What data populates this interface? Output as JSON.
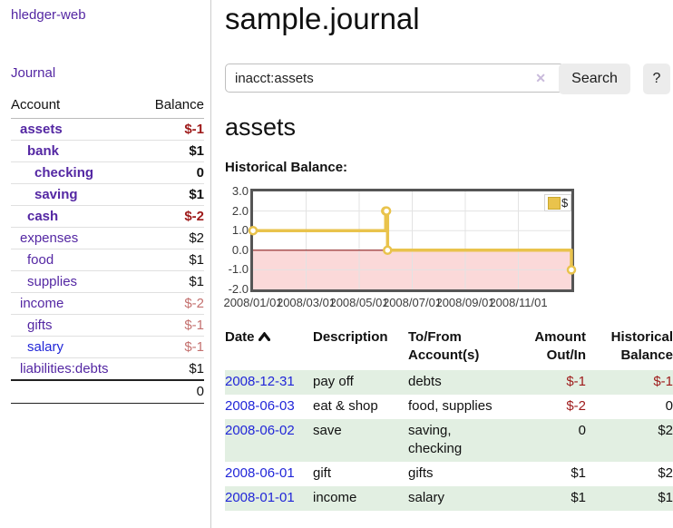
{
  "colors": {
    "link_purple": "#5427a3",
    "link_blue": "#2126d8",
    "negative_strong": "#9e1a1a",
    "negative_muted": "#c4716f",
    "row_shade_green": "#e2efe2",
    "chart_line_yellow": "#e9c34c",
    "chart_negative_pink": "#fbd9d9",
    "chart_zero_line": "#8b1d1d"
  },
  "sidebar": {
    "brand": "hledger-web",
    "journal_link": "Journal",
    "accounts": {
      "headers": [
        "Account",
        "Balance"
      ],
      "rows": [
        {
          "account": "assets",
          "level": 1,
          "bold": true,
          "link": "purple",
          "balance": "$-1",
          "balance_class": "bold neg-strong"
        },
        {
          "account": "bank",
          "level": 2,
          "bold": true,
          "link": "purple",
          "balance": "$1",
          "balance_class": "bold"
        },
        {
          "account": "checking",
          "level": 3,
          "bold": true,
          "link": "purple",
          "balance": "0",
          "balance_class": "bold"
        },
        {
          "account": "saving",
          "level": 3,
          "bold": true,
          "link": "purple",
          "balance": "$1",
          "balance_class": "bold"
        },
        {
          "account": "cash",
          "level": 2,
          "bold": true,
          "link": "purple",
          "balance": "$-2",
          "balance_class": "bold neg-strong"
        },
        {
          "account": "expenses",
          "level": 1,
          "bold": false,
          "link": "purple",
          "balance": "$2",
          "balance_class": ""
        },
        {
          "account": "food",
          "level": 2,
          "bold": false,
          "link": "purple",
          "balance": "$1",
          "balance_class": ""
        },
        {
          "account": "supplies",
          "level": 2,
          "bold": false,
          "link": "purple",
          "balance": "$1",
          "balance_class": ""
        },
        {
          "account": "income",
          "level": 1,
          "bold": false,
          "link": "purple",
          "balance": "$-2",
          "balance_class": "neg-muted"
        },
        {
          "account": "gifts",
          "level": 2,
          "bold": false,
          "link": "purple",
          "balance": "$-1",
          "balance_class": "neg-muted"
        },
        {
          "account": "salary",
          "level": 2,
          "bold": false,
          "link": "blue",
          "balance": "$-1",
          "balance_class": "neg-muted"
        },
        {
          "account": "liabilities:debts",
          "level": 1,
          "bold": false,
          "link": "purple",
          "balance": "$1",
          "balance_class": ""
        }
      ],
      "total": "0"
    }
  },
  "main": {
    "title": "sample.journal",
    "search": {
      "value": "inacct:assets",
      "clear_icon": "✕",
      "button_label": "Search",
      "help_label": "?"
    },
    "account_heading": "assets",
    "chart_title": "Historical Balance:"
  },
  "chart_data": {
    "type": "line",
    "step": true,
    "title": "Historical Balance",
    "ylim": [
      -2,
      3
    ],
    "x_range_months": [
      0,
      12
    ],
    "y_ticks": [
      3.0,
      2.0,
      1.0,
      0.0,
      -1.0,
      -2.0
    ],
    "y_tick_labels": [
      "3.0",
      "2.0",
      "1.0",
      "0.0",
      "-1.0",
      "-2.0"
    ],
    "x_ticks": [
      {
        "m": 0,
        "label": "2008/01/01"
      },
      {
        "m": 2,
        "label": "2008/03/01"
      },
      {
        "m": 4,
        "label": "2008/05/01"
      },
      {
        "m": 6,
        "label": "2008/07/01"
      },
      {
        "m": 8,
        "label": "2008/09/01"
      },
      {
        "m": 10,
        "label": "2008/11/01"
      }
    ],
    "series": [
      {
        "name": "$",
        "color": "#e9c34c",
        "points": [
          {
            "date": "2008/01/01",
            "x_months": 0,
            "value": 1
          },
          {
            "date": "2008/06/01",
            "x_months": 5.0,
            "value": 2
          },
          {
            "date": "2008/06/02",
            "x_months": 5.03,
            "value": 2
          },
          {
            "date": "2008/06/03",
            "x_months": 5.07,
            "value": 0
          },
          {
            "date": "2008/12/31",
            "x_months": 12,
            "value": -1
          }
        ]
      }
    ],
    "negative_region_color": "#fbd9d9",
    "zero_line_color": "#8b1d1d",
    "grid_color": "#e3e3e3",
    "legend": {
      "label": "$",
      "swatch_color": "#e9c34c",
      "position": "top-right"
    }
  },
  "register": {
    "headers": [
      "Date",
      "Description",
      "To/From Account(s)",
      "Amount Out/In",
      "Historical Balance"
    ],
    "sort_icon": "chevron-up",
    "rows": [
      {
        "date": "2008-12-31",
        "description": "pay off",
        "accounts": "debts",
        "amount": "$-1",
        "amount_neg": true,
        "balance": "$-1",
        "balance_neg": true,
        "shaded": true
      },
      {
        "date": "2008-06-03",
        "description": "eat & shop",
        "accounts": "food, supplies",
        "amount": "$-2",
        "amount_neg": true,
        "balance": "0",
        "balance_neg": false,
        "shaded": false
      },
      {
        "date": "2008-06-02",
        "description": "save",
        "accounts": "saving, checking",
        "amount": "0",
        "amount_neg": false,
        "balance": "$2",
        "balance_neg": false,
        "shaded": true
      },
      {
        "date": "2008-06-01",
        "description": "gift",
        "accounts": "gifts",
        "amount": "$1",
        "amount_neg": false,
        "balance": "$2",
        "balance_neg": false,
        "shaded": false
      },
      {
        "date": "2008-01-01",
        "description": "income",
        "accounts": "salary",
        "amount": "$1",
        "amount_neg": false,
        "balance": "$1",
        "balance_neg": false,
        "shaded": true
      }
    ]
  }
}
